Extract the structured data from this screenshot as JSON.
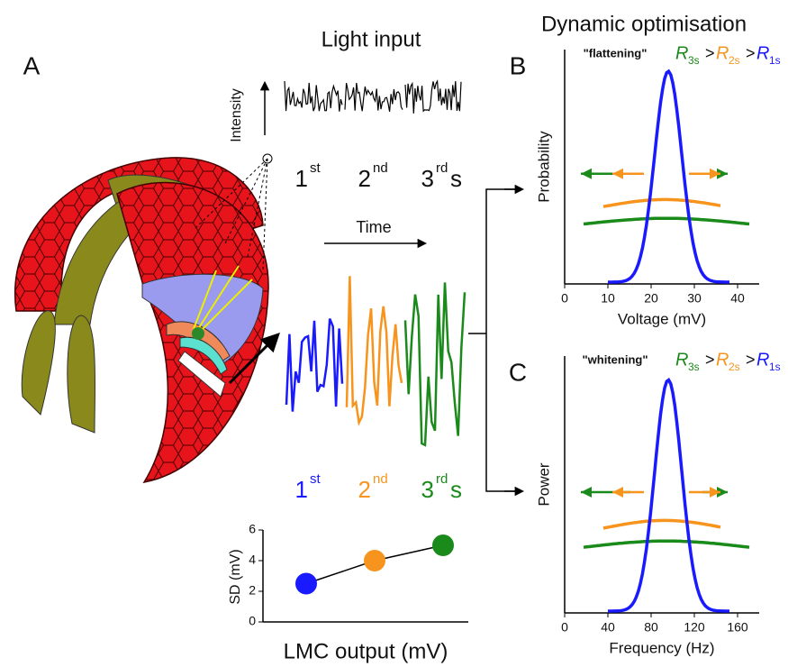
{
  "title": "Dynamic optimisation",
  "panel_a": {
    "label": "A",
    "input_title": "Light input",
    "intensity_label": "Intensity",
    "time_label": "Time",
    "unit": "s",
    "seconds": [
      {
        "n": "1",
        "sup": "st"
      },
      {
        "n": "2",
        "sup": "nd"
      },
      {
        "n": "3",
        "sup": "rd"
      }
    ],
    "colors": [
      "#1a1aff",
      "#f7941d",
      "#1a8a1a"
    ]
  },
  "chart_data": [
    {
      "type": "scatter",
      "xlabel": "LMC output (mV)",
      "ylabel": "SD (mV)",
      "ylim": [
        0,
        6
      ],
      "yticks": [
        0,
        2,
        4,
        6
      ],
      "values": [
        2.5,
        4,
        5
      ],
      "colors": [
        "#1a1aff",
        "#f7941d",
        "#1a8a1a"
      ]
    },
    {
      "type": "line",
      "panel_label": "B",
      "annotation": "\"flattening\"",
      "gt": ">",
      "ratio": [
        {
          "r": "R",
          "sub": "3s",
          "color": "#1a8a1a"
        },
        {
          "r": "R",
          "sub": "2s",
          "color": "#f7941d"
        },
        {
          "r": "R",
          "sub": "1s",
          "color": "#1a1aff"
        }
      ],
      "xlabel": "Voltage (mV)",
      "ylabel": "Probability",
      "xlim": [
        0,
        45
      ],
      "xticks": [
        0,
        10,
        20,
        30,
        40
      ]
    },
    {
      "type": "line",
      "panel_label": "C",
      "annotation": "\"whitening\"",
      "gt": ">",
      "ratio": [
        {
          "r": "R",
          "sub": "3s",
          "color": "#1a8a1a"
        },
        {
          "r": "R",
          "sub": "2s",
          "color": "#f7941d"
        },
        {
          "r": "R",
          "sub": "1s",
          "color": "#1a1aff"
        }
      ],
      "xlabel": "Frequency (Hz)",
      "ylabel": "Power",
      "xlim": [
        0,
        180
      ],
      "xticks": [
        0,
        40,
        80,
        120,
        160
      ]
    }
  ]
}
